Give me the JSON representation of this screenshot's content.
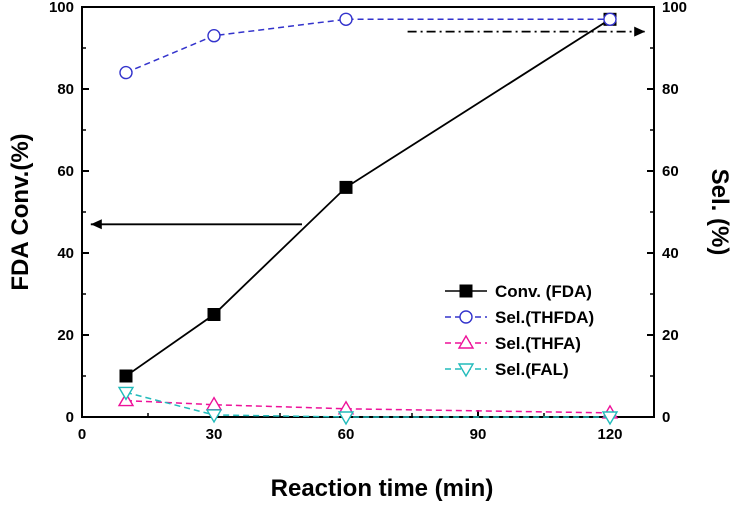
{
  "chart_data": {
    "type": "line",
    "xlabel": "Reaction time (min)",
    "ylabel_left": "FDA Conv.(%)",
    "ylabel_right": "Sel. (%)",
    "xlim": [
      0,
      130
    ],
    "ylim": [
      0,
      100
    ],
    "xticks": [
      0,
      30,
      60,
      90,
      120
    ],
    "yticks": [
      0,
      20,
      40,
      60,
      80,
      100
    ],
    "legend_position": "lower-right",
    "series": [
      {
        "name": "Conv. (FDA)",
        "x": [
          10,
          30,
          60,
          120
        ],
        "values": [
          10,
          25,
          56,
          97
        ],
        "color": "#000000",
        "marker": "square-filled",
        "dash": "solid",
        "axis": "left"
      },
      {
        "name": "Sel.(THFDA)",
        "x": [
          10,
          30,
          60,
          120
        ],
        "values": [
          84,
          93,
          97,
          97
        ],
        "color": "#3333cc",
        "marker": "circle-open",
        "dash": "dashed",
        "axis": "right"
      },
      {
        "name": "Sel.(THFA)",
        "x": [
          10,
          30,
          60,
          120
        ],
        "values": [
          4,
          3,
          2,
          1
        ],
        "color": "#ee1199",
        "marker": "triangle-up-open",
        "dash": "dashed",
        "axis": "right"
      },
      {
        "name": "Sel.(FAL)",
        "x": [
          10,
          30,
          60,
          120
        ],
        "values": [
          6,
          0.5,
          0,
          0
        ],
        "color": "#22bbbb",
        "marker": "triangle-down-open",
        "dash": "dashed",
        "axis": "right"
      }
    ],
    "annotations": [
      {
        "type": "arrow",
        "direction": "left",
        "meaning": "points to left axis (conversion)",
        "x_from": 50,
        "x_to": 2,
        "y": 47,
        "color": "#000000",
        "dash": "solid"
      },
      {
        "type": "arrow",
        "direction": "right",
        "meaning": "points to right axis (selectivity)",
        "x_from": 74,
        "x_to": 128,
        "y": 94,
        "color": "#000000",
        "dash": "dashdot"
      }
    ]
  }
}
